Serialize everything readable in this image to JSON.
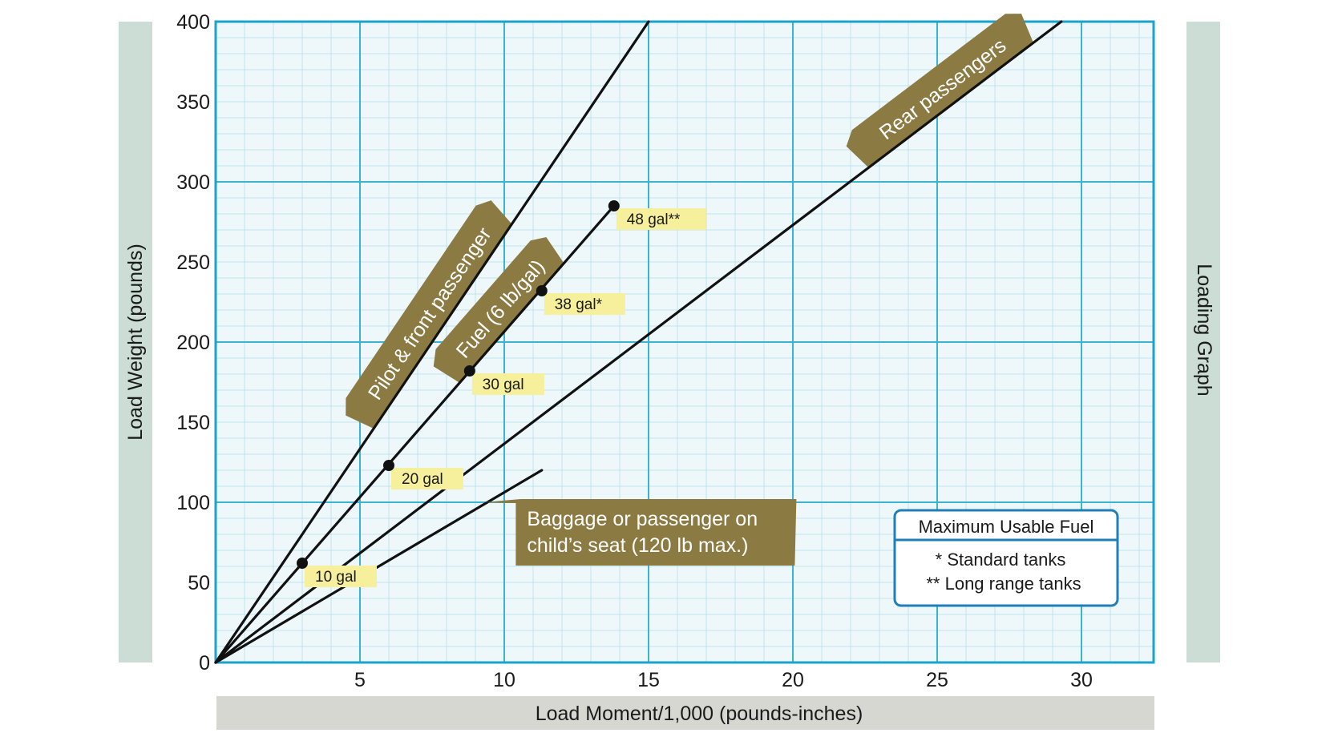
{
  "chart_data": {
    "type": "line",
    "title": "Loading Graph",
    "xlabel": "Load Moment/1,000 (pounds-inches)",
    "ylabel": "Load  Weight (pounds)",
    "xlim": [
      0,
      32.5
    ],
    "ylim": [
      0,
      400
    ],
    "x_ticks": [
      5,
      10,
      15,
      20,
      25,
      30
    ],
    "y_ticks": [
      0,
      50,
      100,
      150,
      200,
      250,
      300,
      350,
      400
    ],
    "grid": true,
    "colors": {
      "plot_bg": "#eef8fb",
      "grid_major": "#3ab4d0",
      "grid_minor": "#bfe3ec",
      "frame": "#1aa3cc",
      "side_band": "#ccddd5",
      "bottom_band": "#d7d7d2",
      "banner": "#8c7a43",
      "gal_label_bg": "#f6ef9c",
      "line": "#111111",
      "fuel_box_border": "#1f7fb8"
    },
    "series": [
      {
        "name": "Pilot & front passenger",
        "x": [
          0,
          15.0
        ],
        "y": [
          0,
          400
        ]
      },
      {
        "name": "Fuel (6 lb/gal)",
        "x": [
          0,
          13.8
        ],
        "y": [
          0,
          285
        ]
      },
      {
        "name": "Rear passengers",
        "x": [
          0,
          29.3
        ],
        "y": [
          0,
          400
        ]
      },
      {
        "name": "Baggage or passenger on child’s seat (120 lb max.)",
        "x": [
          0,
          11.3
        ],
        "y": [
          0,
          120
        ]
      }
    ],
    "fuel_points": [
      {
        "label": "10 gal",
        "x": 3.0,
        "y": 62
      },
      {
        "label": "20 gal",
        "x": 6.0,
        "y": 123
      },
      {
        "label": "30 gal",
        "x": 8.8,
        "y": 182
      },
      {
        "label": "38 gal*",
        "x": 11.3,
        "y": 232
      },
      {
        "label": "48 gal**",
        "x": 13.8,
        "y": 285
      }
    ],
    "baggage_label": [
      "Baggage or passenger on",
      "child’s seat (120 lb max.)"
    ],
    "fuel_box": {
      "title": "Maximum Usable Fuel",
      "lines": [
        "* Standard tanks",
        "** Long range tanks"
      ]
    }
  }
}
